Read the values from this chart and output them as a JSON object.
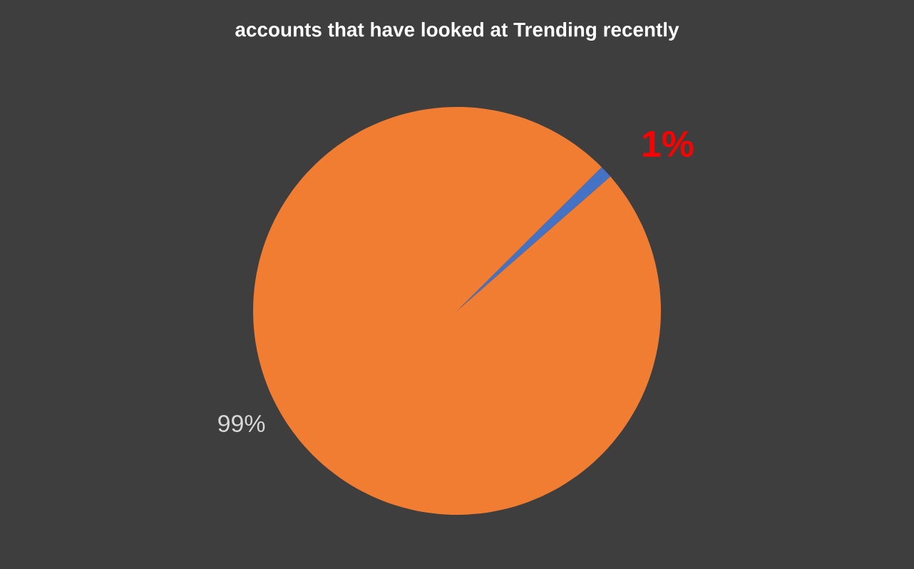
{
  "chart_data": {
    "type": "pie",
    "title": "accounts that have looked at Trending recently",
    "categories": [
      null,
      null
    ],
    "values": [
      1,
      99
    ],
    "colors": [
      "#4472c4",
      "#f07d32"
    ],
    "value_labels": [
      "1%",
      "99%"
    ]
  }
}
